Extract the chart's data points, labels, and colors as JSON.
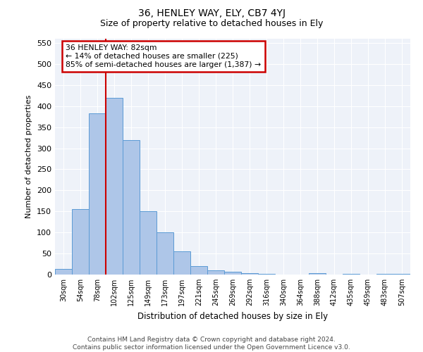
{
  "title": "36, HENLEY WAY, ELY, CB7 4YJ",
  "subtitle": "Size of property relative to detached houses in Ely",
  "xlabel": "Distribution of detached houses by size in Ely",
  "ylabel": "Number of detached properties",
  "categories": [
    "30sqm",
    "54sqm",
    "78sqm",
    "102sqm",
    "125sqm",
    "149sqm",
    "173sqm",
    "197sqm",
    "221sqm",
    "245sqm",
    "269sqm",
    "292sqm",
    "316sqm",
    "340sqm",
    "364sqm",
    "388sqm",
    "412sqm",
    "435sqm",
    "459sqm",
    "483sqm",
    "507sqm"
  ],
  "values": [
    13,
    155,
    382,
    420,
    320,
    150,
    100,
    55,
    20,
    10,
    7,
    4,
    2,
    0,
    0,
    4,
    0,
    2,
    0,
    1,
    2
  ],
  "bar_color": "#aec6e8",
  "bar_edge_color": "#5b9bd5",
  "vline_color": "#cc0000",
  "vline_x_index": 2,
  "annotation_text": "36 HENLEY WAY: 82sqm\n← 14% of detached houses are smaller (225)\n85% of semi-detached houses are larger (1,387) →",
  "annotation_box_color": "#ffffff",
  "annotation_box_edge": "#cc0000",
  "ylim": [
    0,
    560
  ],
  "yticks": [
    0,
    50,
    100,
    150,
    200,
    250,
    300,
    350,
    400,
    450,
    500,
    550
  ],
  "background_color": "#eef2f9",
  "grid_color": "#ffffff",
  "title_fontsize": 10,
  "subtitle_fontsize": 9,
  "footer": "Contains HM Land Registry data © Crown copyright and database right 2024.\nContains public sector information licensed under the Open Government Licence v3.0.",
  "footer_fontsize": 6.5
}
